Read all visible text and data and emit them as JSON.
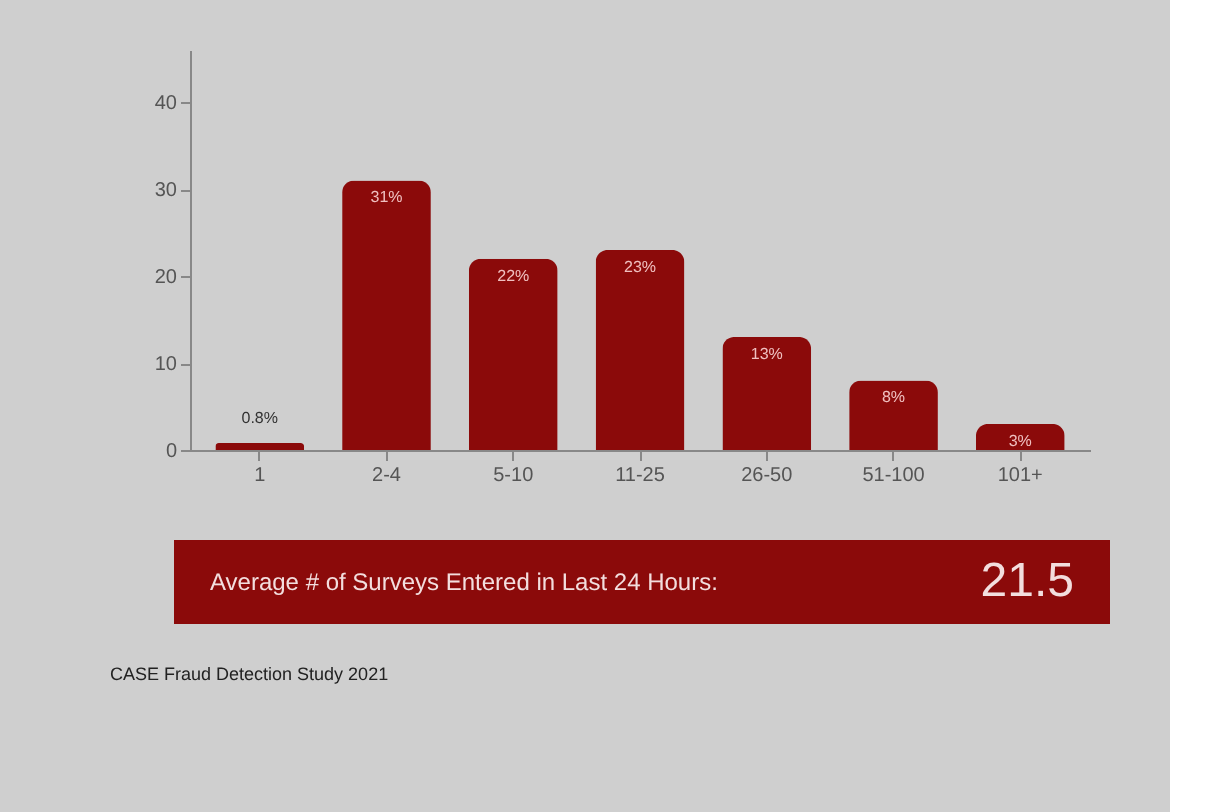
{
  "chart_data": {
    "type": "bar",
    "categories": [
      "1",
      "2-4",
      "5-10",
      "11-25",
      "26-50",
      "51-100",
      "101+"
    ],
    "values": [
      0.8,
      31,
      22,
      23,
      13,
      8,
      3
    ],
    "value_labels": [
      "0.8%",
      "31%",
      "22%",
      "23%",
      "13%",
      "8%",
      "3%"
    ],
    "color": "#8b0a0a",
    "ylim": [
      0,
      46
    ],
    "yticks": [
      0,
      10,
      20,
      30,
      40
    ],
    "grid": false,
    "annotations": [
      "Average # of Surveys Entered in Last 24 Hours:",
      "21.5",
      "CASE Fraud Detection Study 2021"
    ]
  }
}
